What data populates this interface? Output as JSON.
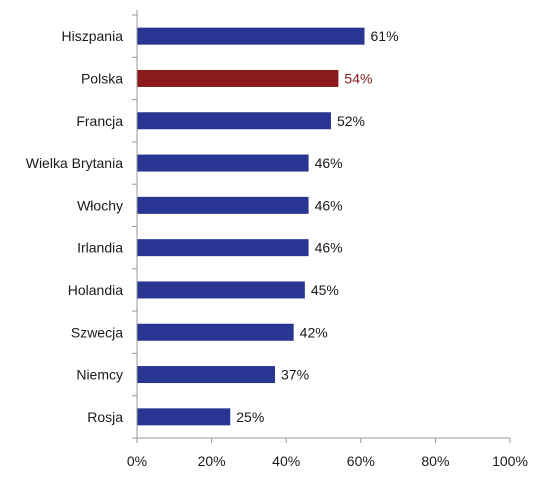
{
  "chart_data": {
    "type": "bar",
    "orientation": "horizontal",
    "categories": [
      "Hiszpania",
      "Polska",
      "Francja",
      "Wielka Brytania",
      "Włochy",
      "Irlandia",
      "Holandia",
      "Szwecja",
      "Niemcy",
      "Rosja"
    ],
    "values": [
      61,
      54,
      52,
      46,
      46,
      46,
      45,
      42,
      37,
      25
    ],
    "value_labels": [
      "61%",
      "54%",
      "52%",
      "46%",
      "46%",
      "46%",
      "45%",
      "42%",
      "37%",
      "25%"
    ],
    "xlim": [
      0,
      100
    ],
    "x_ticks": [
      0,
      20,
      40,
      60,
      80,
      100
    ],
    "x_tick_labels": [
      "0%",
      "20%",
      "40%",
      "60%",
      "80%",
      "100%"
    ],
    "grid": false,
    "legend": "none",
    "bar_color": "#283593",
    "highlight_category": "Polska",
    "highlight_color": "#8b1a1a",
    "title": "",
    "xlabel": "",
    "ylabel": ""
  }
}
